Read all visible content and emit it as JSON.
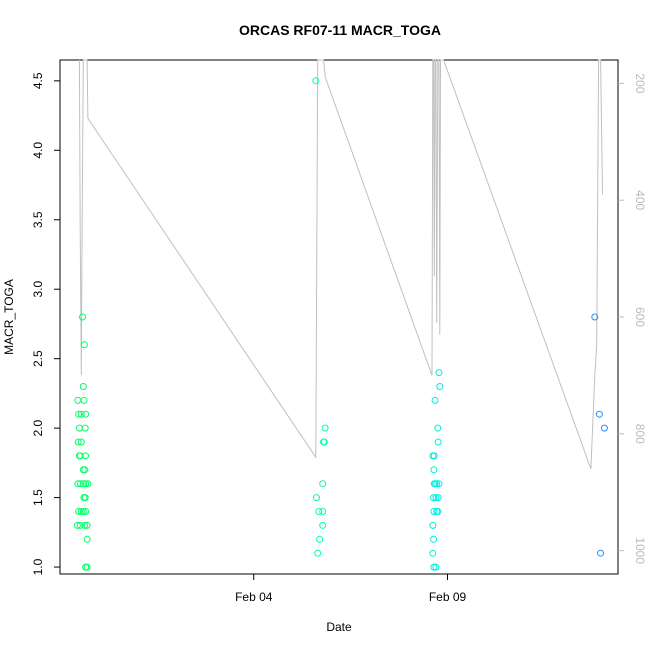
{
  "chart_data": {
    "type": "scatter",
    "title": "ORCAS RF07-11 MACR_TOGA",
    "xlabel": "Date",
    "ylabel": "MACR_TOGA",
    "xlim": [
      0.0,
      14.4
    ],
    "ylim": [
      0.95,
      4.65
    ],
    "x_ticks": [
      {
        "x": 5,
        "label": "Feb 04"
      },
      {
        "x": 10,
        "label": "Feb 09"
      }
    ],
    "y_ticks": [
      1.0,
      1.5,
      2.0,
      2.5,
      3.0,
      3.5,
      4.0,
      4.5
    ],
    "y2_ticks": [
      200,
      400,
      600,
      800,
      1000
    ],
    "y2lim": [
      1040,
      160
    ],
    "grid": false,
    "series": [
      {
        "color": "#00ff66",
        "points": [
          [
            0.45,
            1.3
          ],
          [
            0.48,
            1.4
          ],
          [
            0.46,
            1.6
          ],
          [
            0.5,
            1.8
          ],
          [
            0.47,
            1.9
          ],
          [
            0.5,
            2.0
          ],
          [
            0.48,
            2.1
          ],
          [
            0.46,
            2.2
          ],
          [
            0.52,
            1.3
          ],
          [
            0.55,
            1.4
          ],
          [
            0.53,
            1.6
          ],
          [
            0.52,
            1.8
          ],
          [
            0.55,
            1.9
          ],
          [
            0.55,
            2.1
          ],
          [
            0.58,
            2.8
          ],
          [
            0.6,
            1.4
          ],
          [
            0.62,
            1.5
          ],
          [
            0.61,
            1.6
          ],
          [
            0.6,
            1.7
          ],
          [
            0.62,
            2.2
          ],
          [
            0.6,
            2.3
          ],
          [
            0.63,
            2.6
          ],
          [
            0.66,
            1.0
          ],
          [
            0.64,
            1.3
          ],
          [
            0.66,
            1.4
          ],
          [
            0.65,
            1.5
          ],
          [
            0.66,
            1.6
          ],
          [
            0.64,
            1.7
          ],
          [
            0.66,
            1.8
          ],
          [
            0.65,
            2.0
          ],
          [
            0.66,
            2.1
          ],
          [
            0.7,
            1.0
          ],
          [
            0.7,
            1.2
          ],
          [
            0.7,
            1.3
          ],
          [
            0.72,
            1.6
          ]
        ]
      },
      {
        "color": "#00ffaa",
        "points": [
          [
            6.6,
            4.5
          ],
          [
            6.65,
            1.1
          ],
          [
            6.62,
            1.5
          ],
          [
            6.7,
            1.2
          ],
          [
            6.68,
            1.4
          ],
          [
            6.78,
            1.3
          ],
          [
            6.78,
            1.4
          ],
          [
            6.78,
            1.6
          ],
          [
            6.8,
            1.9
          ],
          [
            6.82,
            1.9
          ],
          [
            6.84,
            2.0
          ]
        ]
      },
      {
        "color": "#00eedd",
        "points": [
          [
            9.65,
            1.0
          ],
          [
            9.62,
            1.1
          ],
          [
            9.64,
            1.2
          ],
          [
            9.62,
            1.3
          ],
          [
            9.65,
            1.4
          ],
          [
            9.64,
            1.5
          ],
          [
            9.66,
            1.6
          ],
          [
            9.65,
            1.7
          ],
          [
            9.62,
            1.8
          ],
          [
            9.66,
            1.8
          ],
          [
            9.7,
            1.0
          ],
          [
            9.72,
            1.4
          ],
          [
            9.7,
            1.5
          ],
          [
            9.72,
            1.6
          ],
          [
            9.68,
            2.2
          ],
          [
            9.75,
            1.4
          ],
          [
            9.76,
            1.5
          ],
          [
            9.78,
            1.6
          ],
          [
            9.76,
            1.9
          ],
          [
            9.75,
            2.0
          ],
          [
            9.8,
            2.3
          ],
          [
            9.78,
            2.4
          ],
          [
            9.68,
            1.6
          ]
        ]
      },
      {
        "color": "#1e90ff",
        "points": [
          [
            13.8,
            2.8
          ],
          [
            13.92,
            2.1
          ],
          [
            13.95,
            1.1
          ],
          [
            14.05,
            2.0
          ]
        ]
      }
    ],
    "secondary_line": {
      "color": "#c0c0c0",
      "axis": "right",
      "points": [
        [
          0.5,
          80
        ],
        [
          0.52,
          450
        ],
        [
          0.55,
          700
        ],
        [
          0.57,
          450
        ],
        [
          0.6,
          80
        ],
        [
          0.64,
          80
        ],
        [
          0.7,
          80
        ],
        [
          0.72,
          260
        ],
        [
          6.6,
          840
        ],
        [
          6.65,
          80
        ],
        [
          6.8,
          80
        ],
        [
          6.85,
          190
        ],
        [
          9.6,
          700
        ],
        [
          9.62,
          80
        ],
        [
          9.64,
          80
        ],
        [
          9.66,
          530
        ],
        [
          9.68,
          80
        ],
        [
          9.7,
          80
        ],
        [
          9.72,
          610
        ],
        [
          9.75,
          80
        ],
        [
          9.78,
          80
        ],
        [
          9.8,
          630
        ],
        [
          9.82,
          80
        ],
        [
          9.9,
          80
        ],
        [
          13.7,
          860
        ],
        [
          13.8,
          700
        ],
        [
          13.85,
          650
        ],
        [
          13.9,
          80
        ],
        [
          13.95,
          80
        ],
        [
          14.0,
          390
        ]
      ]
    }
  }
}
